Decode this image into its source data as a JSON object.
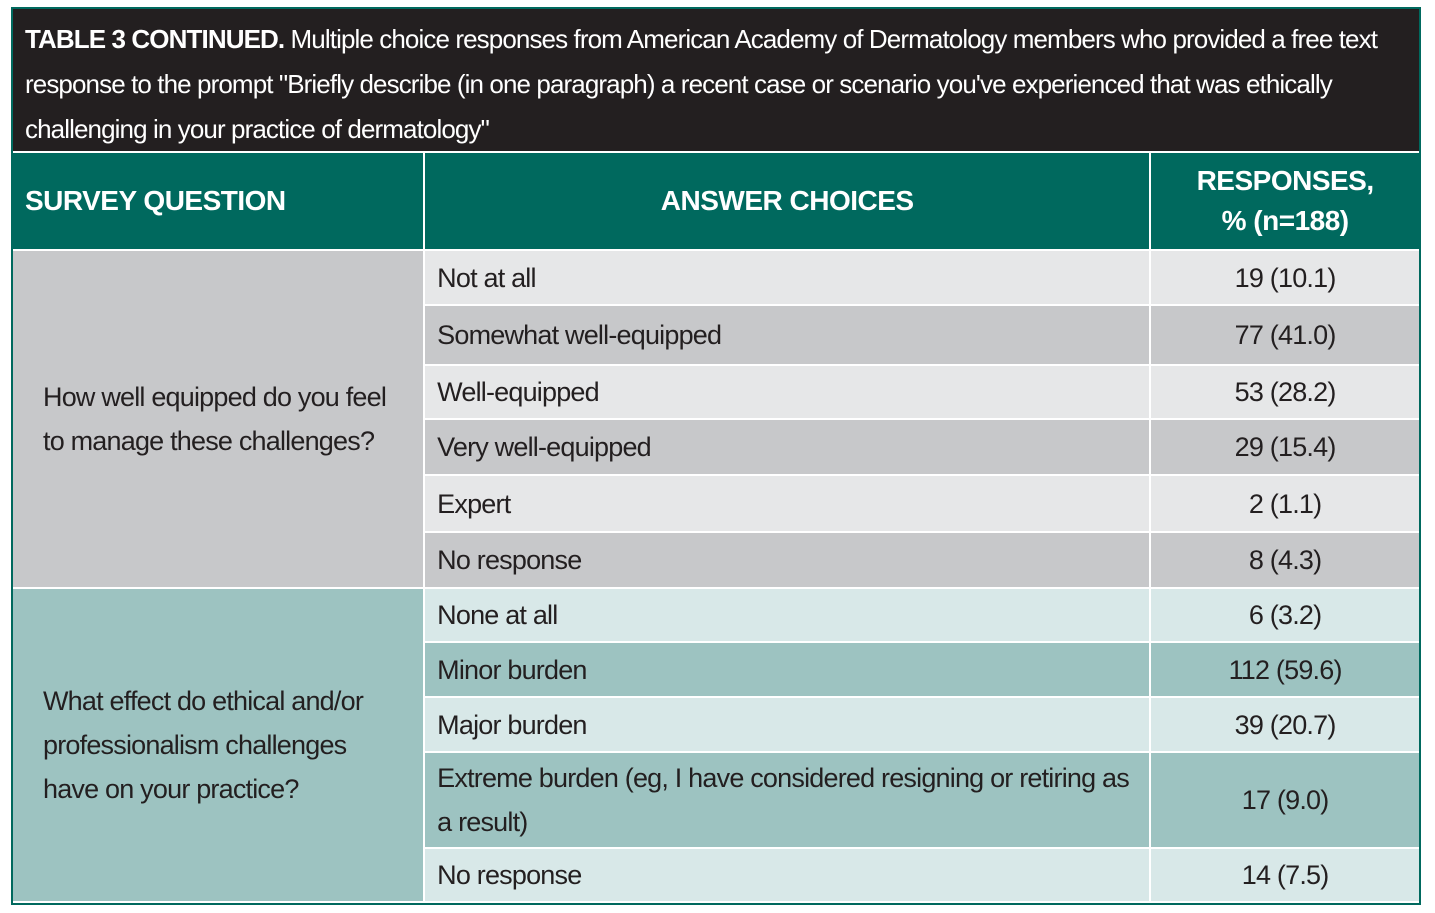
{
  "caption": {
    "label": "TABLE 3 CONTINUED.",
    "text": "Multiple choice responses from American Academy of Dermatology members who provided a free text response to the prompt \"Briefly describe (in one paragraph) a recent case or scenario you've experienced that was ethically challenging in your practice of dermatology\""
  },
  "table": {
    "headers": [
      "SURVEY QUESTION",
      "ANSWER CHOICES",
      "RESPONSES, % (n=188)"
    ],
    "groups": [
      {
        "question": "How well equipped do you feel to manage these challenges?",
        "rows": [
          [
            "Not at all",
            "19 (10.1)"
          ],
          [
            "Somewhat well-equipped",
            "77 (41.0)"
          ],
          [
            "Well-equipped",
            "53 (28.2)"
          ],
          [
            "Very well-equipped",
            "29 (15.4)"
          ],
          [
            "Expert",
            "2 (1.1)"
          ],
          [
            "No response",
            "8 (4.3)"
          ]
        ]
      },
      {
        "question": "What effect do ethical and/or professionalism challenges have on your practice?",
        "rows": [
          [
            "None at all",
            "6 (3.2)"
          ],
          [
            "Minor burden",
            "112 (59.6)"
          ],
          [
            "Major burden",
            "39 (20.7)"
          ],
          [
            "Extreme burden (eg, I have considered resigning or retiring as a result)",
            "17 (9.0)"
          ],
          [
            "No response",
            "14 (7.5)"
          ]
        ]
      }
    ]
  }
}
